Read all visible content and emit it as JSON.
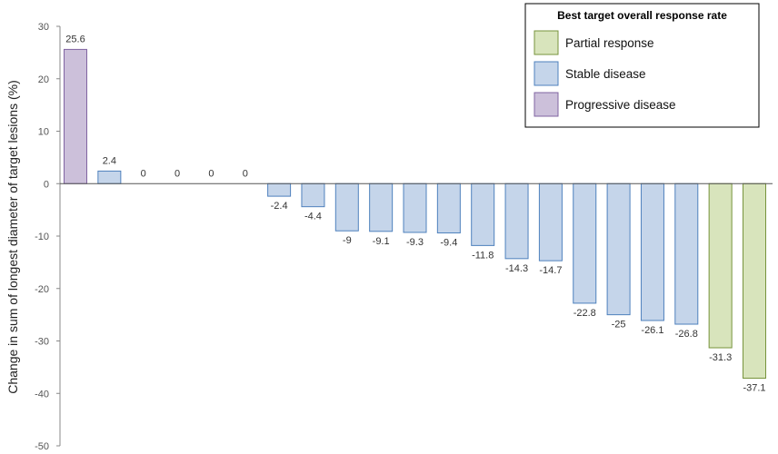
{
  "chart_data": {
    "type": "bar",
    "ylabel": "Change in sum of longest diameter of target lesions (%)",
    "xlabel": "",
    "ylim": [
      -50,
      30
    ],
    "yticks": [
      30,
      20,
      10,
      0,
      -10,
      -20,
      -30,
      -40,
      -50
    ],
    "grid": false,
    "legend": {
      "title": "Best target overall response rate",
      "placement": "top-right",
      "entries": [
        {
          "key": "pr",
          "label": "Partial response",
          "fill": "#d8e4bc",
          "stroke": "#77933c"
        },
        {
          "key": "sd",
          "label": "Stable disease",
          "fill": "#c5d5ea",
          "stroke": "#4f81bd"
        },
        {
          "key": "pd",
          "label": "Progressive disease",
          "fill": "#ccc0da",
          "stroke": "#8064a2"
        }
      ]
    },
    "values": [
      25.6,
      2.4,
      0,
      0,
      0,
      0,
      -2.4,
      -4.4,
      -9,
      -9.1,
      -9.3,
      -9.4,
      -11.8,
      -14.3,
      -14.7,
      -22.8,
      -25,
      -26.1,
      -26.8,
      -31.3,
      -37.1
    ],
    "response": [
      "pd",
      "sd",
      "sd",
      "sd",
      "sd",
      "sd",
      "sd",
      "sd",
      "sd",
      "sd",
      "sd",
      "sd",
      "sd",
      "sd",
      "sd",
      "sd",
      "sd",
      "sd",
      "sd",
      "pr",
      "pr"
    ]
  }
}
